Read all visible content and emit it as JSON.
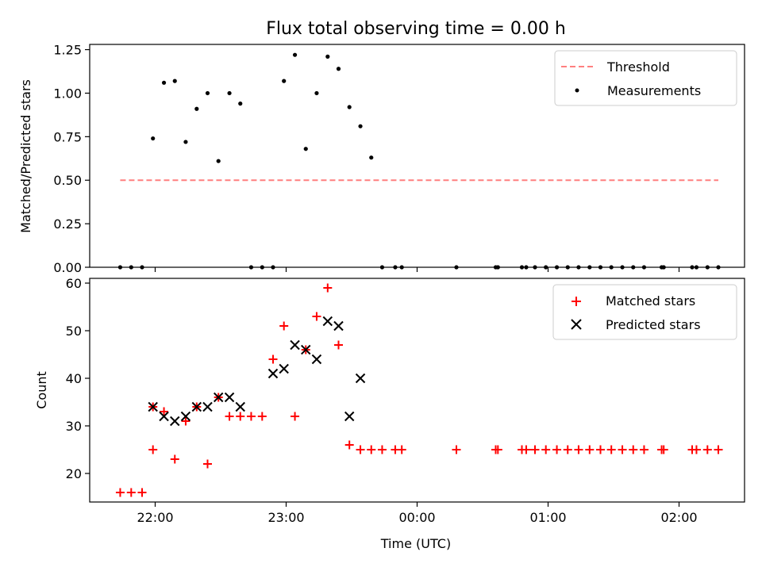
{
  "chart_data": {
    "title": "Flux total observing time = 0.00 h",
    "xlabel": "Time (UTC)",
    "x_ticks": [
      "22:00",
      "23:00",
      "00:00",
      "01:00",
      "02:00"
    ],
    "x_tick_values": [
      22.0,
      23.0,
      24.0,
      25.0,
      26.0
    ],
    "xlim": [
      21.5,
      26.5
    ],
    "colors": {
      "matched": "#ff0000",
      "predicted": "#000000",
      "threshold": "#ff7f7f",
      "measurements": "#000000"
    },
    "panels": [
      {
        "type": "scatter",
        "ylabel": "Matched/Predicted stars",
        "ylim": [
          0,
          1.28
        ],
        "y_ticks": [
          "0.00",
          "0.25",
          "0.50",
          "0.75",
          "1.00",
          "1.25"
        ],
        "y_tick_values": [
          0,
          0.25,
          0.5,
          0.75,
          1.0,
          1.25
        ],
        "legend": [
          "Threshold",
          "Measurements"
        ],
        "legend_position": "top-right",
        "threshold": {
          "name": "Threshold",
          "value": 0.5,
          "x_range": [
            21.733,
            26.3
          ]
        },
        "measurements": {
          "name": "Measurements",
          "x": [
            21.733,
            21.817,
            21.9,
            21.983,
            22.067,
            22.15,
            22.233,
            22.317,
            22.4,
            22.483,
            22.567,
            22.65,
            22.733,
            22.817,
            22.9,
            22.983,
            23.067,
            23.15,
            23.233,
            23.317,
            23.4,
            23.483,
            23.567,
            23.65,
            23.733,
            23.833,
            23.883,
            24.3,
            24.6,
            24.617,
            24.8,
            24.833,
            24.9,
            24.983,
            25.067,
            25.15,
            25.233,
            25.317,
            25.4,
            25.483,
            25.567,
            25.65,
            25.733,
            25.867,
            25.883,
            26.1,
            26.133,
            26.217,
            26.3
          ],
          "y": [
            0,
            0,
            0,
            0.74,
            1.06,
            1.07,
            0.72,
            0.91,
            1.0,
            0.61,
            1.0,
            0.94,
            0,
            0,
            0,
            1.07,
            1.22,
            0.68,
            1.0,
            1.21,
            1.14,
            0.92,
            0.81,
            0.63,
            0,
            0,
            0,
            0,
            0,
            0,
            0,
            0,
            0,
            0,
            0,
            0,
            0,
            0,
            0,
            0,
            0,
            0,
            0,
            0,
            0,
            0,
            0,
            0,
            0
          ]
        }
      },
      {
        "type": "scatter",
        "ylabel": "Count",
        "ylim": [
          14,
          61
        ],
        "y_ticks": [
          "20",
          "30",
          "40",
          "50",
          "60"
        ],
        "y_tick_values": [
          20,
          30,
          40,
          50,
          60
        ],
        "legend": [
          "Matched stars",
          "Predicted stars"
        ],
        "legend_position": "top-right",
        "series": [
          {
            "name": "Matched stars",
            "marker": "+",
            "x": [
              21.733,
              21.817,
              21.9,
              21.983,
              21.983,
              22.067,
              22.15,
              22.233,
              22.317,
              22.4,
              22.483,
              22.567,
              22.65,
              22.733,
              22.817,
              22.9,
              22.983,
              23.067,
              23.15,
              23.233,
              23.317,
              23.4,
              23.483,
              23.567,
              23.65,
              23.733,
              23.833,
              23.883,
              24.3,
              24.6,
              24.617,
              24.8,
              24.833,
              24.9,
              24.983,
              25.067,
              25.15,
              25.233,
              25.317,
              25.4,
              25.483,
              25.567,
              25.65,
              25.733,
              25.867,
              25.883,
              26.1,
              26.133,
              26.217,
              26.3
            ],
            "y": [
              16,
              16,
              16,
              25,
              34,
              33,
              23,
              31,
              34,
              22,
              36,
              32,
              32,
              32,
              32,
              44,
              51,
              32,
              46,
              53,
              59,
              47,
              26,
              25,
              25,
              25,
              25,
              25,
              25,
              25,
              25,
              25,
              25,
              25,
              25,
              25,
              25,
              25,
              25,
              25,
              25,
              25,
              25,
              25,
              25,
              25,
              25,
              25,
              25,
              25
            ]
          },
          {
            "name": "Predicted stars",
            "marker": "x",
            "x": [
              21.983,
              22.067,
              22.15,
              22.233,
              22.317,
              22.4,
              22.483,
              22.567,
              22.65,
              22.9,
              22.983,
              23.067,
              23.15,
              23.233,
              23.317,
              23.4,
              23.483,
              23.567
            ],
            "y": [
              34,
              32,
              31,
              32,
              34,
              34,
              36,
              36,
              34,
              41,
              42,
              47,
              46,
              44,
              52,
              51,
              32,
              40
            ]
          }
        ]
      }
    ]
  }
}
